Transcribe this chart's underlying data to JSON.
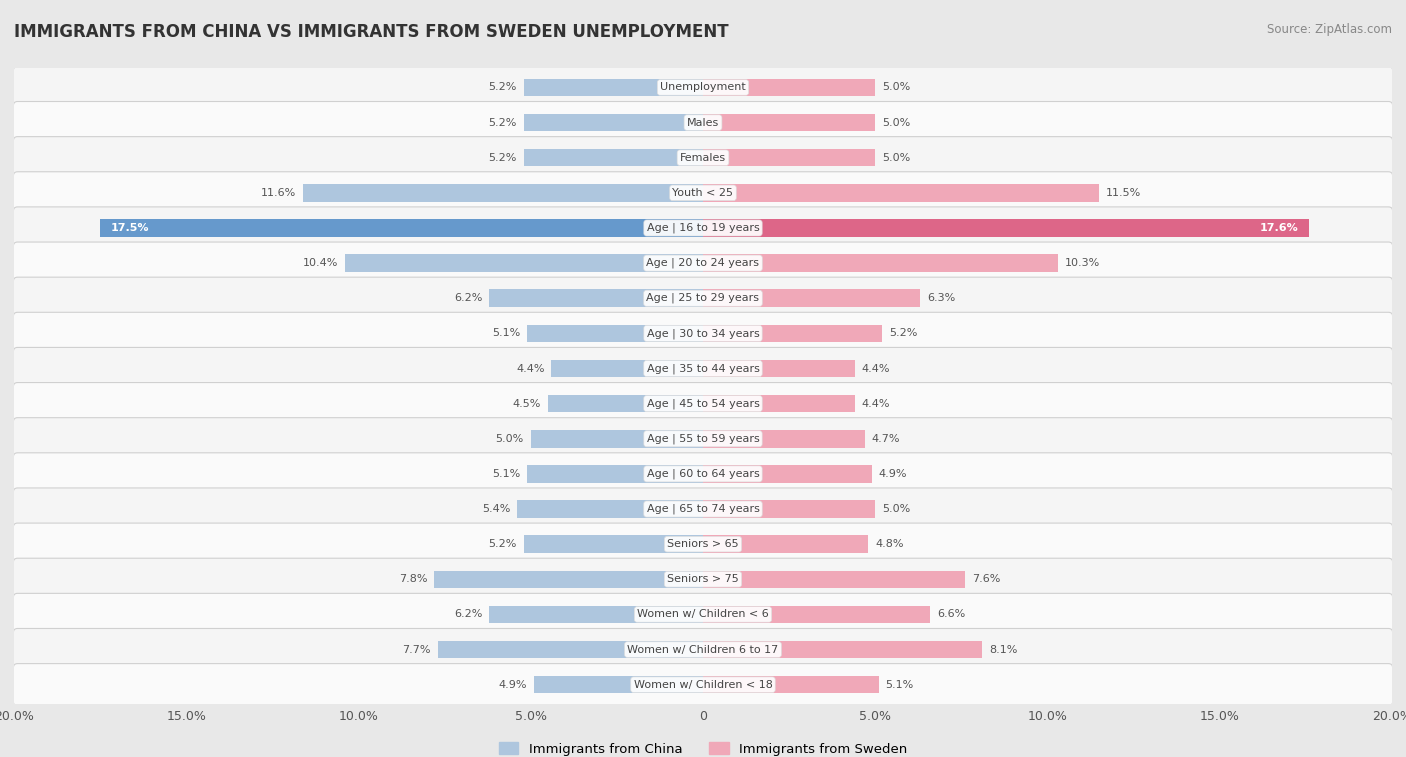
{
  "title": "IMMIGRANTS FROM CHINA VS IMMIGRANTS FROM SWEDEN UNEMPLOYMENT",
  "source": "Source: ZipAtlas.com",
  "categories": [
    "Unemployment",
    "Males",
    "Females",
    "Youth < 25",
    "Age | 16 to 19 years",
    "Age | 20 to 24 years",
    "Age | 25 to 29 years",
    "Age | 30 to 34 years",
    "Age | 35 to 44 years",
    "Age | 45 to 54 years",
    "Age | 55 to 59 years",
    "Age | 60 to 64 years",
    "Age | 65 to 74 years",
    "Seniors > 65",
    "Seniors > 75",
    "Women w/ Children < 6",
    "Women w/ Children 6 to 17",
    "Women w/ Children < 18"
  ],
  "china_values": [
    5.2,
    5.2,
    5.2,
    11.6,
    17.5,
    10.4,
    6.2,
    5.1,
    4.4,
    4.5,
    5.0,
    5.1,
    5.4,
    5.2,
    7.8,
    6.2,
    7.7,
    4.9
  ],
  "sweden_values": [
    5.0,
    5.0,
    5.0,
    11.5,
    17.6,
    10.3,
    6.3,
    5.2,
    4.4,
    4.4,
    4.7,
    4.9,
    5.0,
    4.8,
    7.6,
    6.6,
    8.1,
    5.1
  ],
  "china_color": "#aec6de",
  "sweden_color": "#f0a8b8",
  "china_highlight_color": "#6699cc",
  "sweden_highlight_color": "#dd6688",
  "bg_color": "#e8e8e8",
  "row_bg_even": "#f5f5f5",
  "row_bg_odd": "#fafafa",
  "axis_max": 20.0,
  "legend_china": "Immigrants from China",
  "legend_sweden": "Immigrants from Sweden",
  "bar_height": 0.5,
  "highlight_row": 4,
  "title_fontsize": 12,
  "label_fontsize": 8,
  "value_fontsize": 8
}
